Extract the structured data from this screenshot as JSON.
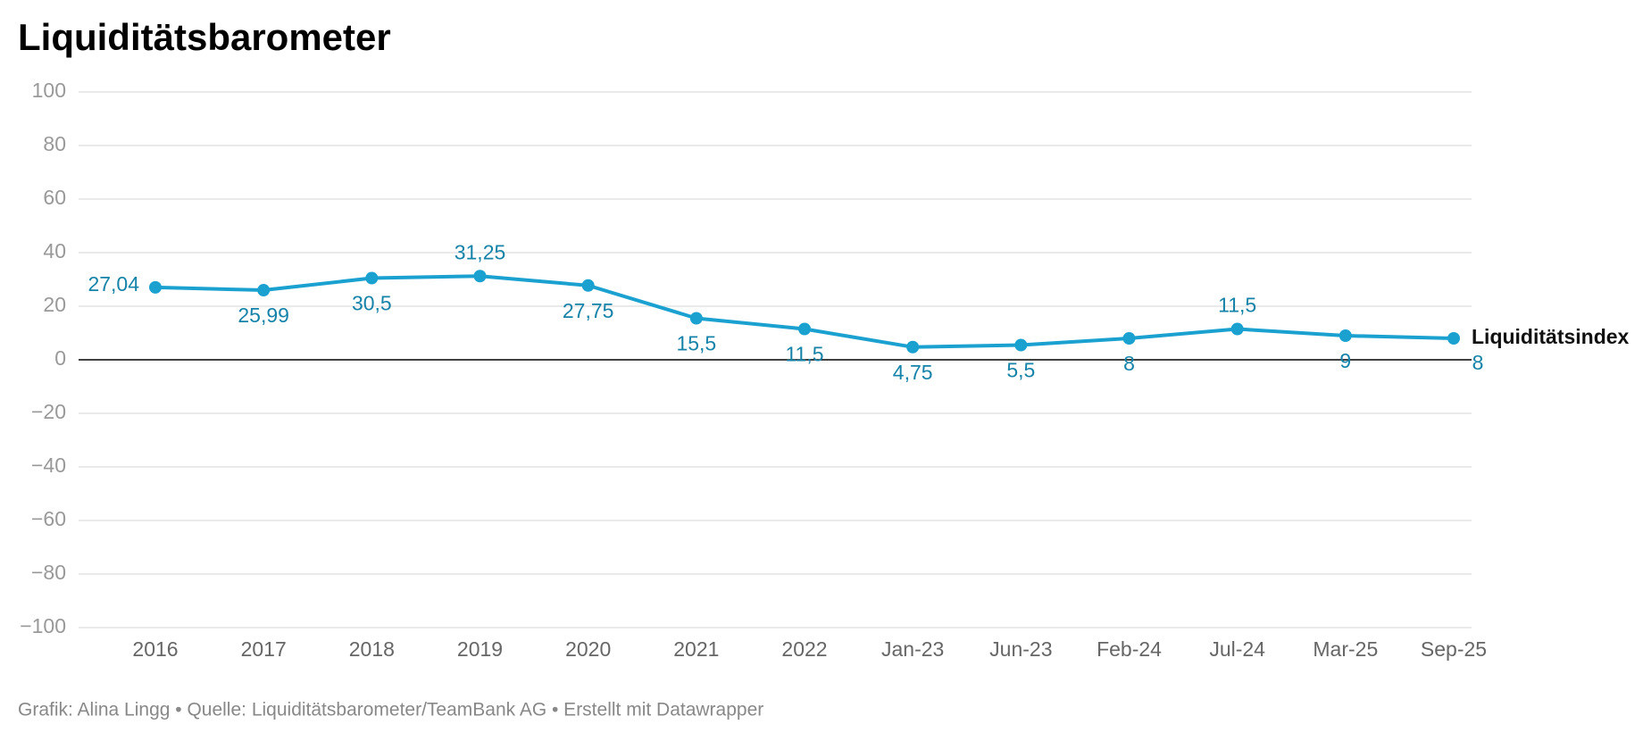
{
  "chart_data": {
    "type": "line",
    "title": "Liquiditätsbarometer",
    "categories": [
      "2016",
      "2017",
      "2018",
      "2019",
      "2020",
      "2021",
      "2022",
      "Jan-23",
      "Jun-23",
      "Feb-24",
      "Jul-24",
      "Mar-25",
      "Sep-25"
    ],
    "series": [
      {
        "name": "Liquiditätsindex",
        "color": "#1ba1d0",
        "values": [
          27.04,
          25.99,
          30.5,
          31.25,
          27.75,
          15.5,
          11.5,
          4.75,
          5.5,
          8,
          11.5,
          9,
          8
        ],
        "value_labels": [
          "27,04",
          "25,99",
          "30,5",
          "31,25",
          "27,75",
          "15,5",
          "11,5",
          "4,75",
          "5,5",
          "8",
          "11,5",
          "9",
          "8"
        ]
      }
    ],
    "ylim": [
      -100,
      100
    ],
    "yticks": [
      {
        "value": -100,
        "label": "−100"
      },
      {
        "value": -80,
        "label": "−80"
      },
      {
        "value": -60,
        "label": "−60"
      },
      {
        "value": -40,
        "label": "−40"
      },
      {
        "value": -20,
        "label": "−20"
      },
      0,
      20,
      40,
      60,
      80,
      100
    ],
    "grid": true,
    "source": "Grafik: Alina Lingg • Quelle: Liquiditätsbarometer/TeamBank AG • Erstellt mit Datawrapper"
  }
}
